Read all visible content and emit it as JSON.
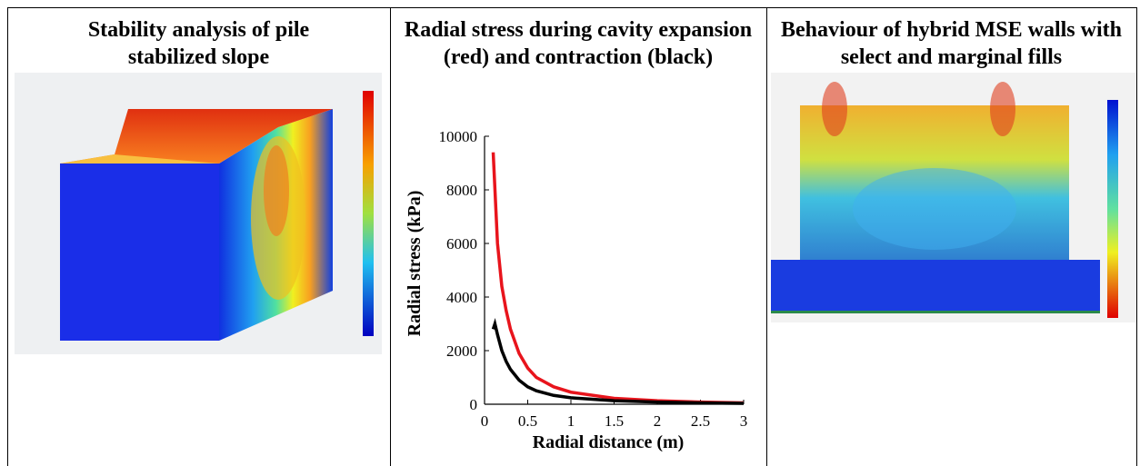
{
  "cells": [
    {
      "title": "Stability analysis of pile stabilized slope"
    },
    {
      "title": "Radial stress during cavity expansion (red) and contraction (black)"
    },
    {
      "title": "Behaviour of hybrid MSE walls with select and marginal fills"
    }
  ],
  "chart_data": {
    "type": "line",
    "x_label": "Radial distance (m)",
    "y_label": "Radial stress (kPa)",
    "xlim": [
      0,
      3
    ],
    "xticks": [
      0,
      0.5,
      1,
      1.5,
      2,
      2.5,
      3
    ],
    "ylim": [
      0,
      10000
    ],
    "yticks": [
      0,
      2000,
      4000,
      6000,
      8000,
      10000
    ],
    "series": [
      {
        "color": "#e8141c",
        "x": [
          0.1,
          0.15,
          0.2,
          0.25,
          0.3,
          0.4,
          0.5,
          0.6,
          0.8,
          1,
          1.5,
          2,
          2.5,
          3
        ],
        "values": [
          9400,
          6000,
          4400,
          3500,
          2800,
          1900,
          1350,
          1000,
          650,
          450,
          220,
          130,
          80,
          50
        ]
      },
      {
        "color": "#000000",
        "x": [
          0.1,
          0.12,
          0.15,
          0.2,
          0.25,
          0.3,
          0.4,
          0.5,
          0.6,
          0.8,
          1,
          1.5,
          2,
          2.5,
          3
        ],
        "values": [
          2800,
          3000,
          2600,
          2000,
          1600,
          1300,
          900,
          650,
          500,
          330,
          240,
          130,
          80,
          50,
          35
        ]
      }
    ]
  }
}
